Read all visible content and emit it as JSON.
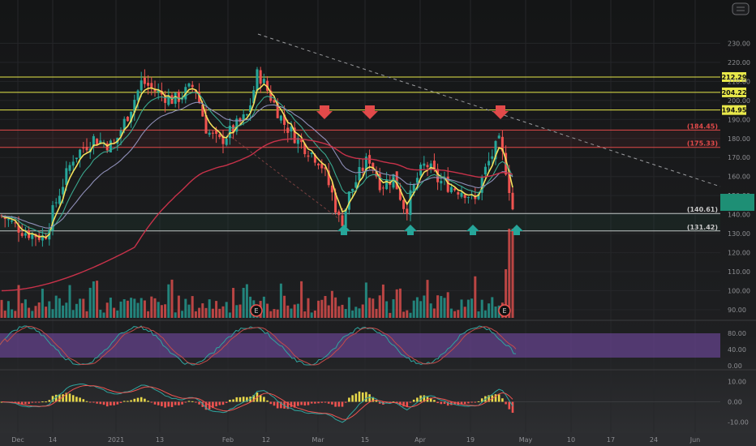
{
  "chart_data": [
    {
      "type": "candlestick",
      "ylim": [
        80,
        238
      ],
      "y_ticks": [
        90,
        100,
        110,
        120,
        130,
        140,
        150,
        160,
        170,
        180,
        190,
        200,
        210,
        220,
        230
      ],
      "y_tick_labels": [
        "90.00",
        "100.00",
        "110.00",
        "120.00",
        "130.00",
        "140.00",
        "150.00",
        "160.00",
        "170.00",
        "180.00",
        "190.00",
        "200.00",
        "210.00",
        "220.00",
        "230.00"
      ],
      "x_tick_labels": [
        "Dec",
        "14",
        "2021",
        "13",
        "Feb",
        "12",
        "Mar",
        "15",
        "Apr",
        "19",
        "May",
        "10",
        "17",
        "24",
        "Jun"
      ],
      "horizontal_levels": [
        {
          "value": 212.29,
          "label": "212.29",
          "color": "#e8e84a",
          "style": "solid",
          "tag": "filled"
        },
        {
          "value": 204.22,
          "label": "204.22",
          "color": "#e8e84a",
          "style": "solid",
          "tag": "filled"
        },
        {
          "value": 194.95,
          "label": "194.95",
          "color": "#e8e84a",
          "style": "solid",
          "tag": "filled"
        },
        {
          "value": 184.45,
          "label": "(184.45)",
          "color": "#e24a4a",
          "style": "solid",
          "tag": "text"
        },
        {
          "value": 175.33,
          "label": "(175.33)",
          "color": "#e24a4a",
          "style": "solid",
          "tag": "text"
        },
        {
          "value": 140.61,
          "label": "(140.61)",
          "color": "#c9c9c9",
          "style": "solid",
          "tag": "text"
        },
        {
          "value": 131.42,
          "label": "(131.42)",
          "color": "#c9c9c9",
          "style": "solid",
          "tag": "text"
        }
      ],
      "down_arrows_at": [
        "Mar 5",
        "Mar 17",
        "Apr 27"
      ],
      "up_arrows_at": [
        "Mar 9",
        "Mar 31",
        "Apr 19",
        "Apr 29"
      ],
      "earnings_markers": [
        "E",
        "E"
      ],
      "series": [
        {
          "kind": "ema_fast",
          "color": "#f3e05c"
        },
        {
          "kind": "ema_mid",
          "color": "#3aa88f"
        },
        {
          "kind": "ema_slow",
          "color": "#8f8fb8"
        },
        {
          "kind": "sma_long",
          "color": "#c8324a"
        }
      ],
      "last_price_marker": {
        "color": "#1e8f75"
      },
      "grid": true
    },
    {
      "type": "line",
      "name": "stochastic oscillator",
      "ylim": [
        -5,
        100
      ],
      "y_ticks": [
        80,
        40,
        0
      ],
      "y_tick_labels": [
        "80.00",
        "40.00",
        "0.00"
      ],
      "band": [
        20,
        80
      ],
      "band_color": "#7b4fb0"
    },
    {
      "type": "histogram",
      "name": "MACD",
      "ylim": [
        -15,
        15
      ],
      "y_ticks": [
        10,
        0,
        -10
      ],
      "y_tick_labels": [
        "10.00",
        "0.00",
        "-10.00"
      ]
    }
  ]
}
